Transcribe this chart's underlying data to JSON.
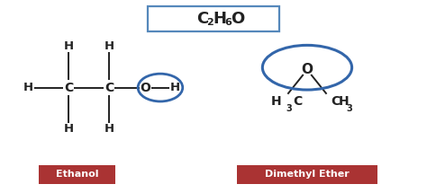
{
  "title_text": "C",
  "title_sub2": "₂",
  "title_H": "H",
  "title_sub6": "₆",
  "title_O": "O",
  "title_box_color": "#5588bb",
  "title_bg": "#ffffff",
  "label1": "Ethanol",
  "label2": "Dimethyl Ether",
  "label_bg": "#aa3333",
  "label_fg": "#ffffff",
  "circle_color": "#3366aa",
  "line_color": "#222222",
  "font_color": "#222222",
  "bg_color": "#ffffff",
  "xlim": [
    0,
    10
  ],
  "ylim": [
    0,
    4.3
  ],
  "figw": 4.74,
  "figh": 2.15,
  "dpi": 100
}
